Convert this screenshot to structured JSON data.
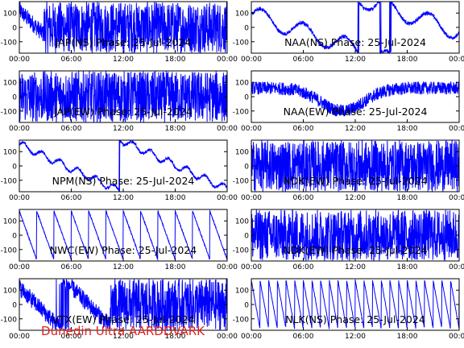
{
  "footer": "Dunedin Ultra AARDDVARK",
  "colors": {
    "trace": "#0000ff",
    "axes": "#000000",
    "footer": "#e0201f"
  },
  "chart_data": [
    {
      "type": "line",
      "title": "JAP(NS) Phase: 25-Jul-2024",
      "x_ticks": [
        "00:00",
        "06:00",
        "12:00",
        "18:00",
        "00:00"
      ],
      "y_ticks": [
        "100",
        "0",
        "-100"
      ],
      "xlim": [
        0,
        24
      ],
      "ylim": [
        -180,
        180
      ],
      "pattern": "mix-dense",
      "breakHour": 2.8
    },
    {
      "type": "line",
      "title": "NAA(NS) Phase: 25-Jul-2024",
      "x_ticks": [
        "00:00",
        "06:00",
        "12:00",
        "18:00",
        "00:00"
      ],
      "y_ticks": [
        "100",
        "0",
        "-100"
      ],
      "xlim": [
        0,
        24
      ],
      "ylim": [
        -180,
        180
      ],
      "pattern": "naa-ns"
    },
    {
      "type": "line",
      "title": "JAP(EW) Phase: 25-Jul-2024",
      "x_ticks": [
        "00:00",
        "06:00",
        "12:00",
        "18:00",
        "00:00"
      ],
      "y_ticks": [
        "100",
        "0",
        "-100"
      ],
      "xlim": [
        0,
        24
      ],
      "ylim": [
        -180,
        180
      ],
      "pattern": "noise"
    },
    {
      "type": "line",
      "title": "NAA(EW) Phase: 25-Jul-2024",
      "x_ticks": [
        "00:00",
        "06:00",
        "12:00",
        "18:00",
        "00:00"
      ],
      "y_ticks": [
        "100",
        "0",
        "-100"
      ],
      "xlim": [
        0,
        24
      ],
      "ylim": [
        -180,
        180
      ],
      "pattern": "valley"
    },
    {
      "type": "line",
      "title": "NPM(NS) Phase: 25-Jul-2024",
      "x_ticks": [
        "00:00",
        "06:00",
        "12:00",
        "18:00",
        "00:00"
      ],
      "y_ticks": [
        "100",
        "0",
        "-100"
      ],
      "xlim": [
        0,
        24
      ],
      "ylim": [
        -180,
        180
      ],
      "pattern": "npm"
    },
    {
      "type": "line",
      "title": "NDK(EW) Phase: 25-Jul-2024",
      "x_ticks": [
        "00:00",
        "06:00",
        "12:00",
        "18:00",
        "00:00"
      ],
      "y_ticks": [
        "100",
        "0",
        "-100"
      ],
      "xlim": [
        0,
        24
      ],
      "ylim": [
        -180,
        180
      ],
      "pattern": "noise"
    },
    {
      "type": "line",
      "title": "NWC(EW) Phase: 25-Jul-2024",
      "x_ticks": [
        "00:00",
        "06:00",
        "12:00",
        "18:00",
        "00:00"
      ],
      "y_ticks": [
        "100",
        "0",
        "-100"
      ],
      "xlim": [
        0,
        24
      ],
      "ylim": [
        -180,
        180
      ],
      "pattern": "saw-down",
      "period": 2.0
    },
    {
      "type": "line",
      "title": "NDK(EW) Phase: 25-Jul-2024",
      "x_ticks": [
        "00:00",
        "06:00",
        "12:00",
        "18:00",
        "00:00"
      ],
      "y_ticks": [
        "100",
        "0",
        "-100"
      ],
      "xlim": [
        0,
        24
      ],
      "ylim": [
        -180,
        180
      ],
      "pattern": "noise"
    },
    {
      "type": "line",
      "title": "VTX(EW) Phase: 25-Jul-2024",
      "x_ticks": [
        "00:00",
        "06:00",
        "12:00",
        "18:00",
        "00:00"
      ],
      "y_ticks": [
        "100",
        "0",
        "-100"
      ],
      "xlim": [
        0,
        24
      ],
      "ylim": [
        -180,
        180
      ],
      "pattern": "mix-dense",
      "breakHour": 10.5
    },
    {
      "type": "line",
      "title": "NLK(NS) Phase: 25-Jul-2024",
      "x_ticks": [
        "00:00",
        "06:00",
        "12:00",
        "18:00",
        "00:00"
      ],
      "y_ticks": [
        "100",
        "0",
        "-100"
      ],
      "xlim": [
        0,
        24
      ],
      "ylim": [
        -180,
        180
      ],
      "pattern": "saw-down",
      "period": 1.0
    }
  ]
}
